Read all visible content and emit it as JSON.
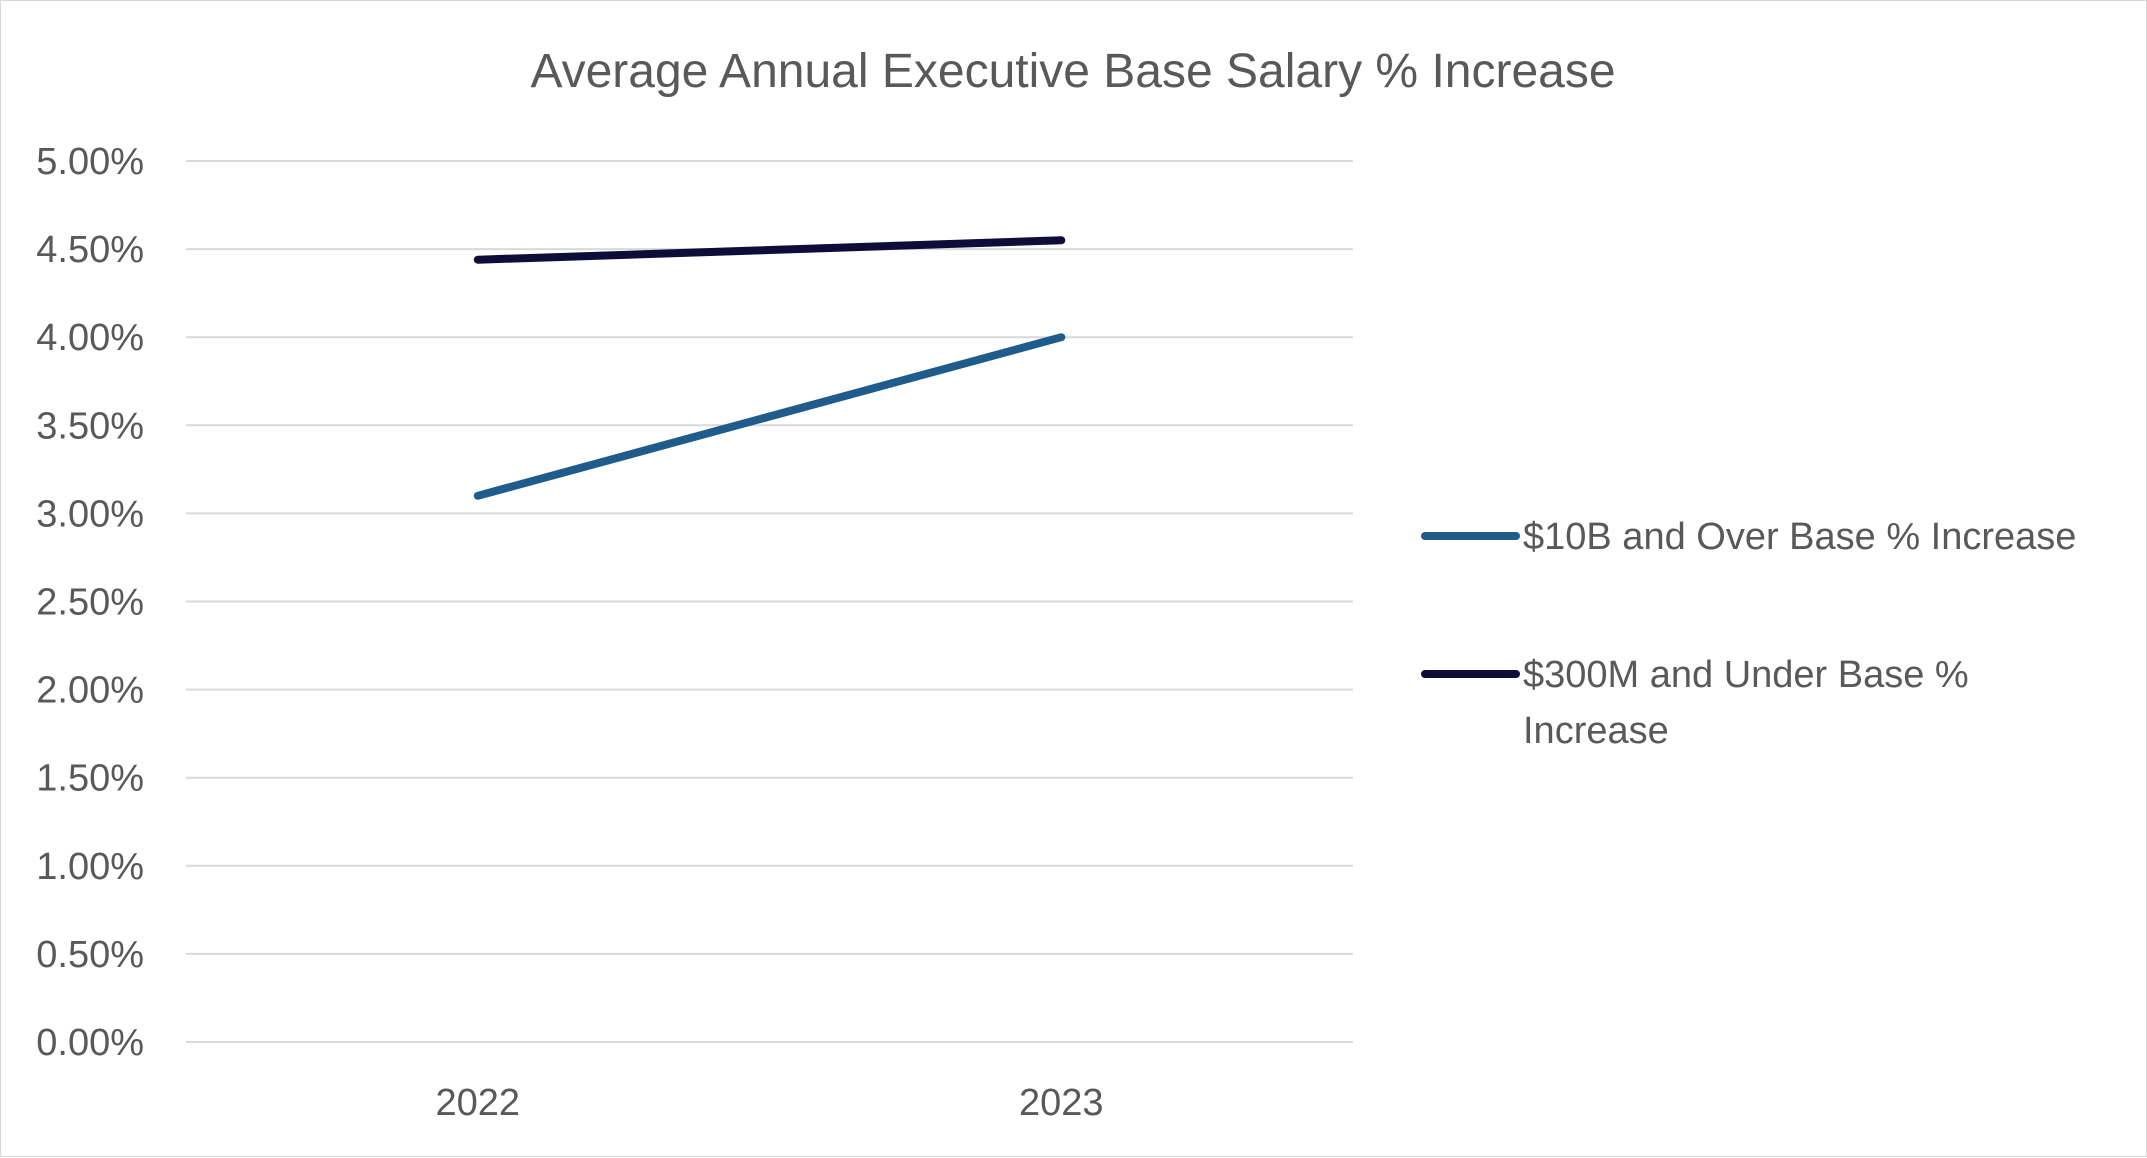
{
  "chart_data": {
    "type": "line",
    "title": "Average Annual Executive Base Salary % Increase",
    "xlabel": "",
    "ylabel": "",
    "categories": [
      "2022",
      "2023"
    ],
    "ylim": [
      0,
      5
    ],
    "yticks": [
      0,
      0.5,
      1,
      1.5,
      2,
      2.5,
      3,
      3.5,
      4,
      4.5,
      5
    ],
    "ytick_labels": [
      "0.00%",
      "0.50%",
      "1.00%",
      "1.50%",
      "2.00%",
      "2.50%",
      "3.00%",
      "3.50%",
      "4.00%",
      "4.50%",
      "5.00%"
    ],
    "grid": true,
    "legend_position": "right",
    "series": [
      {
        "name": "$10B and Over Base % Increase",
        "legend_lines": [
          "$10B and Over Base % Increase"
        ],
        "color": "#1f5c8b",
        "values": [
          3.1,
          4.0
        ]
      },
      {
        "name": "$300M and Under Base % Increase",
        "legend_lines": [
          "$300M and Under Base %",
          "Increase"
        ],
        "color": "#0f0c3a",
        "values": [
          4.44,
          4.55
        ]
      }
    ]
  }
}
